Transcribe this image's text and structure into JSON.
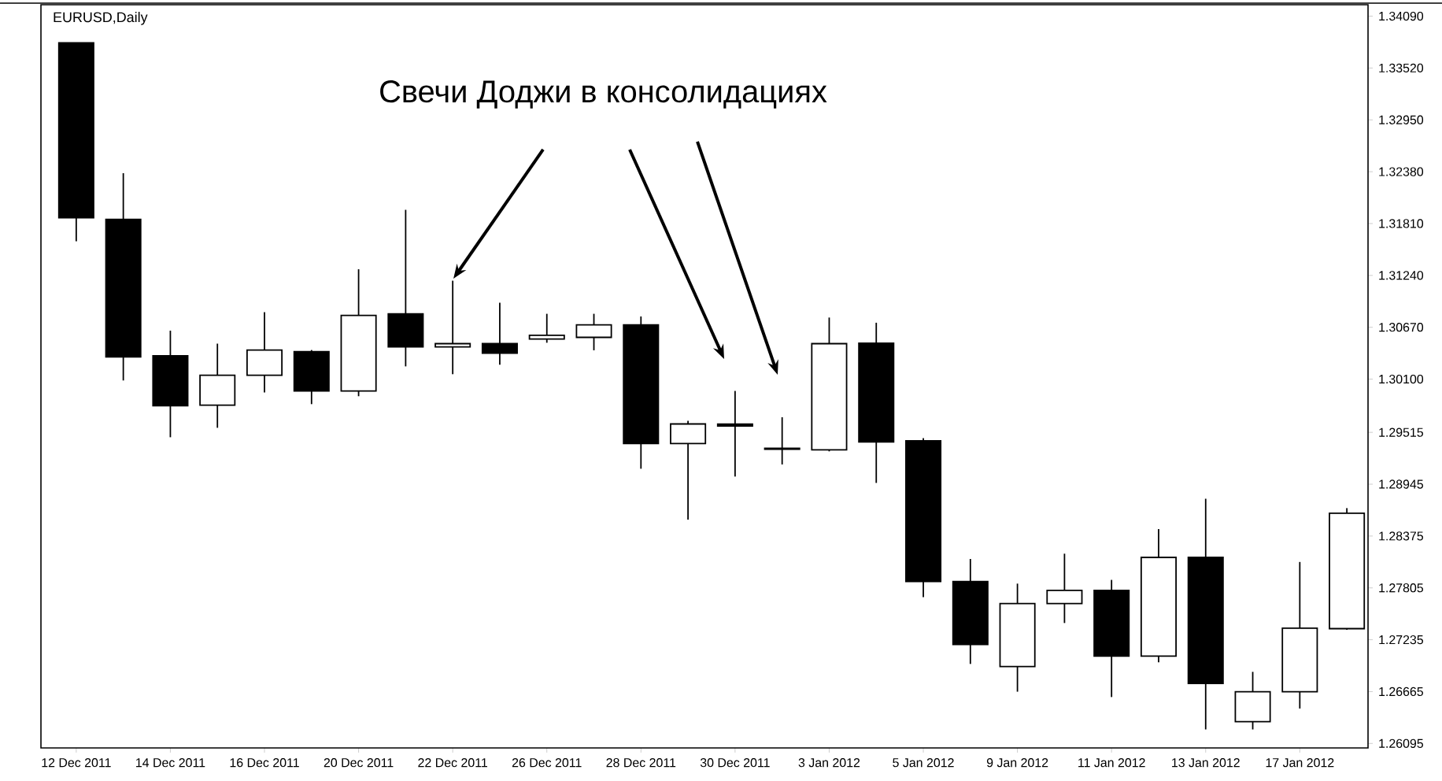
{
  "chart_data": {
    "type": "candlestick",
    "title": "EURUSD,Daily",
    "annotations": [
      "Свечи Доджи в консолидациях"
    ],
    "color": "#000000",
    "categories": [
      "12 Dec 2011",
      null,
      "14 Dec 2011",
      null,
      "16 Dec 2011",
      null,
      "20 Dec 2011",
      null,
      "22 Dec 2011",
      null,
      "26 Dec 2011",
      null,
      "28 Dec 2011",
      null,
      "30 Dec 2011",
      null,
      "3 Jan 2012",
      null,
      "5 Jan 2012",
      null,
      "9 Jan 2012",
      null,
      "11 Jan 2012",
      null,
      "13 Jan 2012",
      null,
      "17 Jan 2012",
      null
    ],
    "ohlc": [
      [
        1.33796,
        1.33796,
        1.31615,
        1.31874
      ],
      [
        1.31857,
        1.32364,
        1.30085,
        1.30344
      ],
      [
        1.30356,
        1.30633,
        1.29461,
        1.29808
      ],
      [
        1.29814,
        1.3049,
        1.29565,
        1.30143
      ],
      [
        1.30143,
        1.30836,
        1.29953,
        1.3042
      ],
      [
        1.30403,
        1.3042,
        1.29825,
        1.2997
      ],
      [
        1.2997,
        1.31308,
        1.29912,
        1.30801
      ],
      [
        1.30818,
        1.31961,
        1.3024,
        1.30455
      ],
      [
        1.30455,
        1.31182,
        1.30154,
        1.3049
      ],
      [
        1.3049,
        1.3094,
        1.30258,
        1.30386
      ],
      [
        1.30541,
        1.30818,
        1.305,
        1.30581
      ],
      [
        1.30559,
        1.30818,
        1.30417,
        1.30697
      ],
      [
        1.30697,
        1.30789,
        1.29115,
        1.29392
      ],
      [
        1.29392,
        1.29641,
        1.28556,
        1.29607
      ],
      [
        1.29605,
        1.2997,
        1.29029,
        1.29585
      ],
      [
        1.2934,
        1.29681,
        1.29162,
        1.2933
      ],
      [
        1.29323,
        1.30777,
        1.29306,
        1.3049
      ],
      [
        1.30495,
        1.3072,
        1.28959,
        1.2941
      ],
      [
        1.29422,
        1.29451,
        1.27703,
        1.27876
      ],
      [
        1.27876,
        1.28123,
        1.26969,
        1.27183
      ],
      [
        1.26941,
        1.27852,
        1.26664,
        1.27633
      ],
      [
        1.27633,
        1.28181,
        1.27419,
        1.27777
      ],
      [
        1.27777,
        1.27893,
        1.26605,
        1.27055
      ],
      [
        1.27055,
        1.28452,
        1.26986,
        1.2814
      ],
      [
        1.2814,
        1.28786,
        1.26249,
        1.26755
      ],
      [
        1.26335,
        1.26882,
        1.26249,
        1.26664
      ],
      [
        1.26664,
        1.2809,
        1.26479,
        1.27362
      ],
      [
        1.27357,
        1.28682,
        1.27345,
        1.28625
      ]
    ],
    "ylim": [
      1.26046,
      1.34216
    ],
    "yticks": [
      {
        "value": 1.3409,
        "label": "1.34090"
      },
      {
        "value": 1.3352,
        "label": "1.33520"
      },
      {
        "value": 1.3295,
        "label": "1.32950"
      },
      {
        "value": 1.3238,
        "label": "1.32380"
      },
      {
        "value": 1.3181,
        "label": "1.31810"
      },
      {
        "value": 1.3124,
        "label": "1.31240"
      },
      {
        "value": 1.3067,
        "label": "1.30670"
      },
      {
        "value": 1.301,
        "label": "1.30100"
      },
      {
        "value": 1.29515,
        "label": "1.29515"
      },
      {
        "value": 1.28945,
        "label": "1.28945"
      },
      {
        "value": 1.28375,
        "label": "1.28375"
      },
      {
        "value": 1.27805,
        "label": "1.27805"
      },
      {
        "value": 1.27235,
        "label": "1.27235"
      },
      {
        "value": 1.26665,
        "label": "1.26665"
      },
      {
        "value": 1.26095,
        "label": "1.26095"
      }
    ]
  }
}
